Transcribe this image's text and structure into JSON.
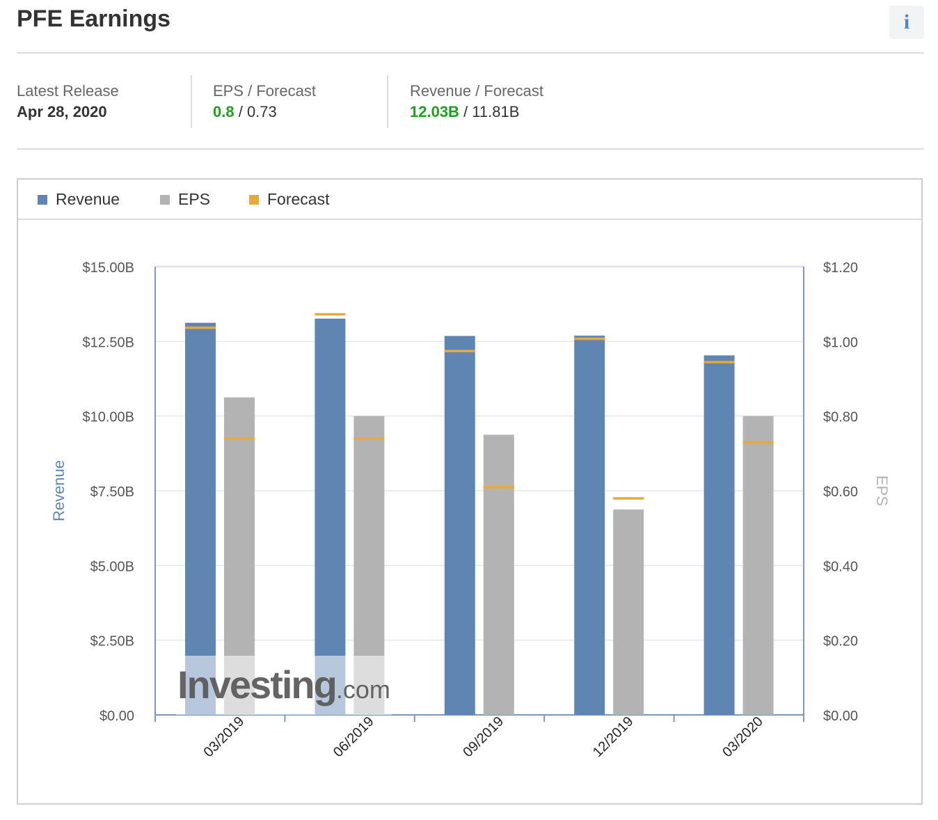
{
  "header": {
    "title": "PFE Earnings",
    "info_icon": "info-icon",
    "info_label": "i"
  },
  "summary": {
    "latest_release": {
      "label": "Latest Release",
      "value": "Apr 28, 2020"
    },
    "eps": {
      "label": "EPS / Forecast",
      "actual": "0.8",
      "separator": " / ",
      "forecast": "0.73"
    },
    "revenue": {
      "label": "Revenue / Forecast",
      "actual": "12.03B",
      "separator": " / ",
      "forecast": "11.81B"
    }
  },
  "legend": {
    "revenue": "Revenue",
    "eps": "EPS",
    "forecast": "Forecast"
  },
  "colors": {
    "revenue": "#5f86b3",
    "eps": "#b3b3b3",
    "forecast": "#e6a93a",
    "green": "#1aa31a"
  },
  "watermark": "Investing.com",
  "chart_data": {
    "type": "bar",
    "categories": [
      "03/2019",
      "06/2019",
      "09/2019",
      "12/2019",
      "03/2020"
    ],
    "series": [
      {
        "name": "Revenue",
        "axis": "left",
        "values": [
          13.12,
          13.26,
          12.68,
          12.69,
          12.03
        ],
        "forecast": [
          12.96,
          13.41,
          12.18,
          12.59,
          11.81
        ]
      },
      {
        "name": "EPS",
        "axis": "right",
        "values": [
          0.85,
          0.8,
          0.75,
          0.55,
          0.8
        ],
        "forecast": [
          0.74,
          0.74,
          0.61,
          0.58,
          0.73
        ]
      }
    ],
    "ylabel_left": "Revenue",
    "ylabel_right": "EPS",
    "ylim_left": [
      0,
      15
    ],
    "ylim_right": [
      0,
      1.2
    ],
    "yticks_left": [
      "$0.00",
      "$2.50B",
      "$5.00B",
      "$7.50B",
      "$10.00B",
      "$12.50B",
      "$15.00B"
    ],
    "yticks_right": [
      "$0.00",
      "$0.20",
      "$0.40",
      "$0.60",
      "$0.80",
      "$1.00",
      "$1.20"
    ],
    "grid": true,
    "legend_position": "top-left"
  }
}
